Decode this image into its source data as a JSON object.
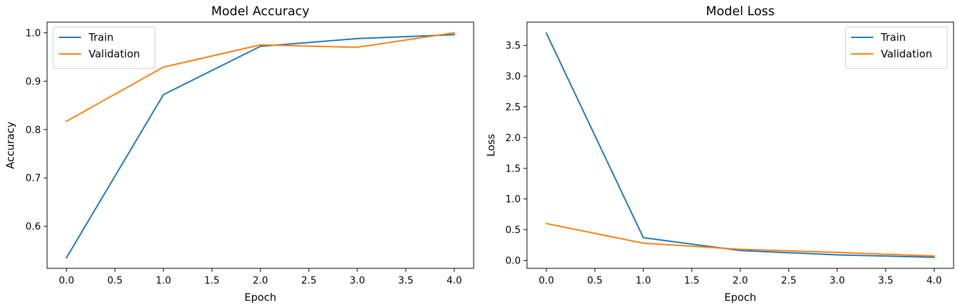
{
  "colors": {
    "train": "#1f77b4",
    "validation": "#ff7f0e",
    "axis": "#000000",
    "legend_border": "#cccccc"
  },
  "chart_data": [
    {
      "type": "line",
      "title": "Model Accuracy",
      "xlabel": "Epoch",
      "ylabel": "Accuracy",
      "xlim": [
        -0.2,
        4.2
      ],
      "ylim": [
        0.513,
        1.022
      ],
      "xticks": [
        0.0,
        0.5,
        1.0,
        1.5,
        2.0,
        2.5,
        3.0,
        3.5,
        4.0
      ],
      "xtick_labels": [
        "0.0",
        "0.5",
        "1.0",
        "1.5",
        "2.0",
        "2.5",
        "3.0",
        "3.5",
        "4.0"
      ],
      "yticks": [
        0.6,
        0.7,
        0.8,
        0.9,
        1.0
      ],
      "ytick_labels": [
        "0.6",
        "0.7",
        "0.8",
        "0.9",
        "1.0"
      ],
      "x": [
        0,
        1,
        2,
        3,
        4
      ],
      "series": [
        {
          "name": "Train",
          "values": [
            0.535,
            0.872,
            0.972,
            0.988,
            0.996
          ]
        },
        {
          "name": "Validation",
          "values": [
            0.817,
            0.929,
            0.975,
            0.97,
            1.0
          ]
        }
      ],
      "legend": "upper left",
      "grid": false
    },
    {
      "type": "line",
      "title": "Model Loss",
      "xlabel": "Epoch",
      "ylabel": "Loss",
      "xlim": [
        -0.2,
        4.2
      ],
      "ylim": [
        -0.13,
        3.88
      ],
      "xticks": [
        0.0,
        0.5,
        1.0,
        1.5,
        2.0,
        2.5,
        3.0,
        3.5,
        4.0
      ],
      "xtick_labels": [
        "0.0",
        "0.5",
        "1.0",
        "1.5",
        "2.0",
        "2.5",
        "3.0",
        "3.5",
        "4.0"
      ],
      "yticks": [
        0.0,
        0.5,
        1.0,
        1.5,
        2.0,
        2.5,
        3.0,
        3.5
      ],
      "ytick_labels": [
        "0.0",
        "0.5",
        "1.0",
        "1.5",
        "2.0",
        "2.5",
        "3.0",
        "3.5"
      ],
      "x": [
        0,
        1,
        2,
        3,
        4
      ],
      "series": [
        {
          "name": "Train",
          "values": [
            3.7,
            0.37,
            0.16,
            0.09,
            0.05
          ]
        },
        {
          "name": "Validation",
          "values": [
            0.6,
            0.28,
            0.18,
            0.13,
            0.07
          ]
        }
      ],
      "legend": "upper right",
      "grid": false
    }
  ]
}
